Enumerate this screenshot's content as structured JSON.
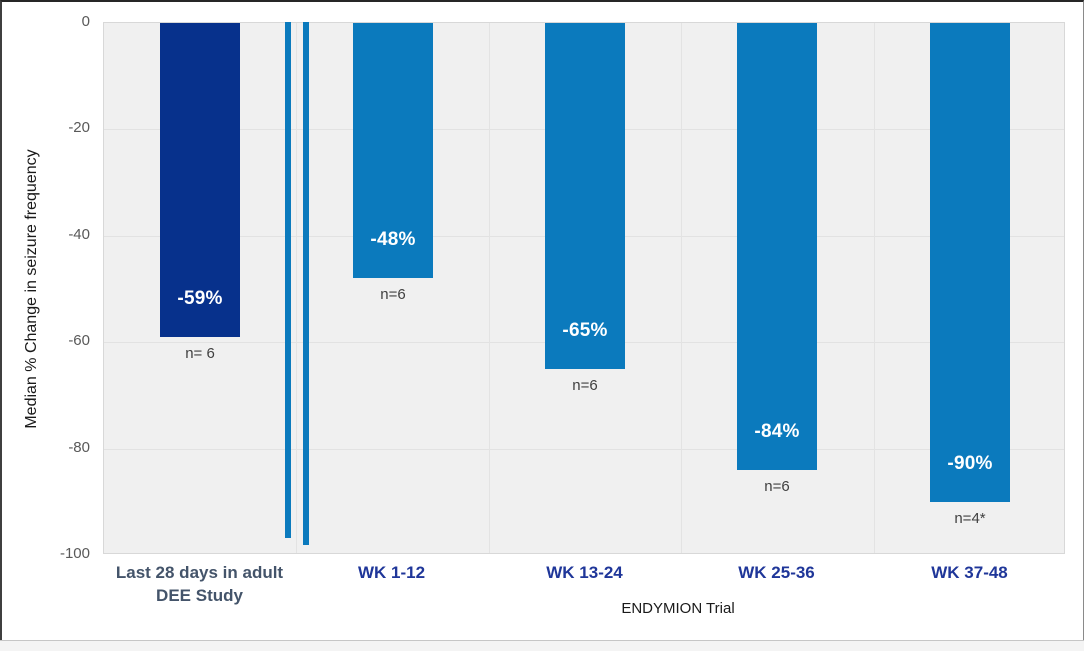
{
  "chart_data": {
    "type": "bar",
    "title": "",
    "ylabel": "Median % Change in seizure frequency",
    "group_axis_label": "ENDYMION Trial",
    "ylim": [
      -100,
      0
    ],
    "yticks": [
      0,
      -20,
      -40,
      -60,
      -80,
      -100
    ],
    "ytick_labels": [
      "0",
      "-20",
      "-40",
      "-60",
      "-80",
      "-100"
    ],
    "grid": true,
    "axis_break_between": [
      "Last 28 days in adult DEE Study",
      "WK 1-12"
    ],
    "categories": [
      "Last 28 days in adult DEE Study",
      "WK 1-12",
      "WK 13-24",
      "WK 25-36",
      "WK 37-48"
    ],
    "bars": [
      {
        "label": "Last 28 days in adult\nDEE Study",
        "value": -59,
        "value_label": "-59%",
        "n_label": "n= 6",
        "color": "#07318C",
        "label_color": "#44546A"
      },
      {
        "label": "WK 1-12",
        "value": -48,
        "value_label": "-48%",
        "n_label": "n=6",
        "color": "#0B7ABD",
        "label_color": "#1F3699"
      },
      {
        "label": "WK 13-24",
        "value": -65,
        "value_label": "-65%",
        "n_label": "n=6",
        "color": "#0B7ABD",
        "label_color": "#1F3699"
      },
      {
        "label": "WK 25-36",
        "value": -84,
        "value_label": "-84%",
        "n_label": "n=6",
        "color": "#0B7ABD",
        "label_color": "#1F3699"
      },
      {
        "label": "WK 37-48",
        "value": -90,
        "value_label": "-90%",
        "n_label": "n=4*",
        "color": "#0B7ABD",
        "label_color": "#1F3699"
      }
    ]
  },
  "colors": {
    "dark_bar": "#07318C",
    "light_bar": "#0B7ABD",
    "plot_background": "#F0F0F0",
    "gridline": "#E2E2E2",
    "tick_text": "#595959",
    "n_text": "#404040",
    "break_mark": "#0B7ABD"
  }
}
